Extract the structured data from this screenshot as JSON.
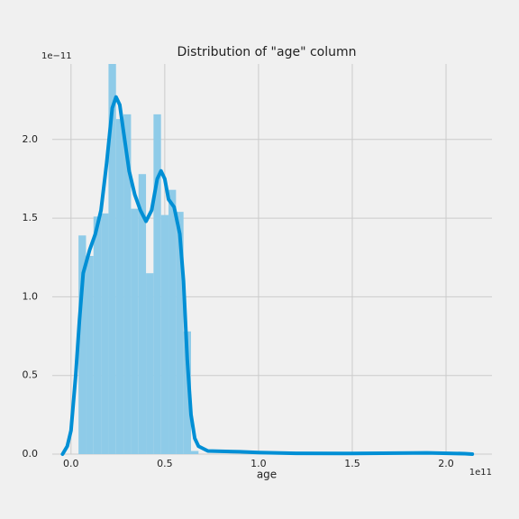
{
  "chart_data": {
    "type": "distplot",
    "title": "Distribution of \"age\" column",
    "xlabel": "age",
    "x_offset_label": "1e11",
    "y_offset_label": "1e−11",
    "bins": [
      0.04,
      0.08,
      0.12,
      0.16,
      0.2,
      0.24,
      0.28,
      0.32,
      0.36,
      0.4,
      0.44,
      0.48,
      0.52,
      0.56,
      0.6,
      0.64,
      0.68
    ],
    "counts": [
      1.39,
      1.26,
      1.51,
      1.53,
      2.48,
      2.13,
      2.16,
      1.56,
      1.78,
      1.15,
      2.16,
      1.52,
      1.68,
      1.54,
      0.78,
      0.02
    ],
    "bar_color": "#8ecbe8",
    "kde": {
      "color": "#008fd5",
      "x": [
        -0.045,
        -0.02,
        0,
        0.025,
        0.045,
        0.065,
        0.1,
        0.13,
        0.16,
        0.19,
        0.22,
        0.24,
        0.26,
        0.28,
        0.31,
        0.34,
        0.37,
        0.4,
        0.43,
        0.46,
        0.48,
        0.5,
        0.52,
        0.55,
        0.58,
        0.6,
        0.62,
        0.64,
        0.66,
        0.68,
        0.73,
        0.9,
        1.0,
        1.2,
        1.5,
        1.9,
        2.1,
        2.14
      ],
      "values": [
        0,
        0.05,
        0.15,
        0.5,
        0.85,
        1.15,
        1.3,
        1.4,
        1.55,
        1.85,
        2.2,
        2.27,
        2.22,
        2.05,
        1.8,
        1.65,
        1.55,
        1.48,
        1.55,
        1.75,
        1.8,
        1.75,
        1.62,
        1.57,
        1.4,
        1.1,
        0.6,
        0.25,
        0.1,
        0.05,
        0.02,
        0.015,
        0.01,
        0.005,
        0.004,
        0.008,
        0.003,
        0
      ]
    },
    "xlim": [
      -0.1,
      2.245
    ],
    "ylim": [
      0,
      2.48
    ],
    "xticks": [
      {
        "value": 0,
        "label": "0.0"
      },
      0.5,
      {
        "value": 1,
        "label": "1.0"
      },
      1.5,
      {
        "value": 2,
        "label": "2.0"
      }
    ],
    "yticks": [
      {
        "value": 0,
        "label": "0.0"
      },
      0.5,
      {
        "value": 1,
        "label": "1.0"
      },
      1.5,
      {
        "value": 2,
        "label": "2.0"
      }
    ],
    "grid": true
  }
}
